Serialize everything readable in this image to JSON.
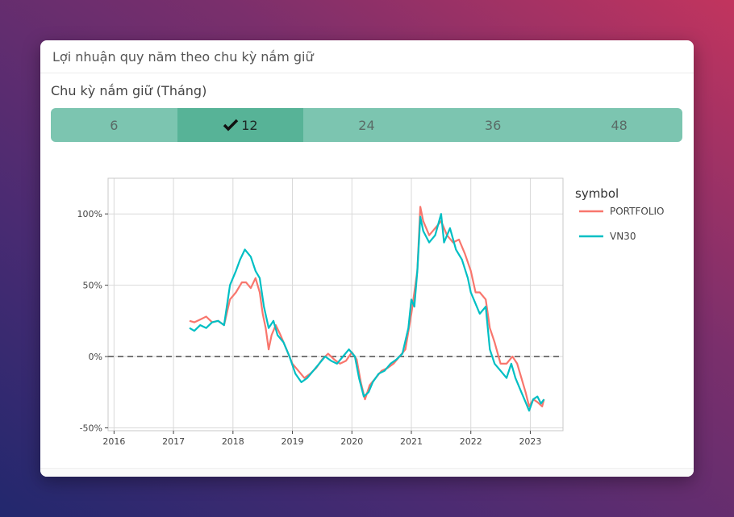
{
  "card": {
    "title": "Lợi nhuận quy năm theo chu kỳ nắm giữ"
  },
  "period": {
    "label": "Chu kỳ nắm giữ (Tháng)",
    "options": [
      "6",
      "12",
      "24",
      "36",
      "48"
    ],
    "selected": "12"
  },
  "colors": {
    "portfolio": "#f8766d",
    "vn30": "#00bfc4",
    "active_button": "#57b397",
    "button": "#7cc5b0"
  },
  "chart_data": {
    "type": "line",
    "y_tick_labels": [
      "100%",
      "50%",
      "0%",
      "-50%"
    ],
    "y_ticks": [
      100,
      50,
      0,
      -50
    ],
    "x_ticks": [
      2016,
      2017,
      2018,
      2019,
      2020,
      2021,
      2022,
      2023
    ],
    "xlim": [
      2015.9,
      2023.55
    ],
    "ylim": [
      -52,
      125
    ],
    "grid": true,
    "reference_line": {
      "y": 0,
      "style": "dashed"
    },
    "legend": {
      "title": "symbol",
      "position": "right"
    },
    "series": [
      {
        "name": "PORTFOLIO",
        "points": [
          [
            2017.27,
            25
          ],
          [
            2017.35,
            24
          ],
          [
            2017.45,
            26
          ],
          [
            2017.55,
            28
          ],
          [
            2017.65,
            24
          ],
          [
            2017.75,
            25
          ],
          [
            2017.85,
            22
          ],
          [
            2017.95,
            40
          ],
          [
            2018.05,
            45
          ],
          [
            2018.15,
            52
          ],
          [
            2018.22,
            52
          ],
          [
            2018.3,
            48
          ],
          [
            2018.38,
            55
          ],
          [
            2018.45,
            45
          ],
          [
            2018.5,
            30
          ],
          [
            2018.55,
            20
          ],
          [
            2018.6,
            5
          ],
          [
            2018.65,
            15
          ],
          [
            2018.72,
            22
          ],
          [
            2018.8,
            15
          ],
          [
            2018.9,
            5
          ],
          [
            2019.0,
            -5
          ],
          [
            2019.1,
            -10
          ],
          [
            2019.2,
            -15
          ],
          [
            2019.3,
            -12
          ],
          [
            2019.4,
            -8
          ],
          [
            2019.5,
            -2
          ],
          [
            2019.6,
            2
          ],
          [
            2019.7,
            -2
          ],
          [
            2019.8,
            -5
          ],
          [
            2019.9,
            -3
          ],
          [
            2020.0,
            3
          ],
          [
            2020.08,
            -2
          ],
          [
            2020.15,
            -18
          ],
          [
            2020.22,
            -30
          ],
          [
            2020.3,
            -20
          ],
          [
            2020.4,
            -15
          ],
          [
            2020.5,
            -10
          ],
          [
            2020.6,
            -8
          ],
          [
            2020.7,
            -5
          ],
          [
            2020.8,
            0
          ],
          [
            2020.9,
            5
          ],
          [
            2021.0,
            30
          ],
          [
            2021.05,
            45
          ],
          [
            2021.1,
            60
          ],
          [
            2021.15,
            105
          ],
          [
            2021.2,
            95
          ],
          [
            2021.3,
            85
          ],
          [
            2021.4,
            90
          ],
          [
            2021.5,
            95
          ],
          [
            2021.6,
            85
          ],
          [
            2021.7,
            80
          ],
          [
            2021.8,
            82
          ],
          [
            2021.9,
            72
          ],
          [
            2022.0,
            60
          ],
          [
            2022.08,
            45
          ],
          [
            2022.15,
            45
          ],
          [
            2022.25,
            40
          ],
          [
            2022.32,
            20
          ],
          [
            2022.4,
            10
          ],
          [
            2022.5,
            -5
          ],
          [
            2022.6,
            -5
          ],
          [
            2022.7,
            0
          ],
          [
            2022.78,
            -5
          ],
          [
            2022.85,
            -15
          ],
          [
            2022.92,
            -25
          ],
          [
            2022.98,
            -35
          ],
          [
            2023.05,
            -30
          ],
          [
            2023.12,
            -32
          ],
          [
            2023.2,
            -35
          ],
          [
            2023.23,
            -30
          ]
        ]
      },
      {
        "name": "VN30",
        "points": [
          [
            2017.27,
            20
          ],
          [
            2017.35,
            18
          ],
          [
            2017.45,
            22
          ],
          [
            2017.55,
            20
          ],
          [
            2017.65,
            24
          ],
          [
            2017.75,
            25
          ],
          [
            2017.85,
            22
          ],
          [
            2017.95,
            50
          ],
          [
            2018.05,
            60
          ],
          [
            2018.12,
            68
          ],
          [
            2018.2,
            75
          ],
          [
            2018.3,
            70
          ],
          [
            2018.38,
            60
          ],
          [
            2018.45,
            55
          ],
          [
            2018.52,
            35
          ],
          [
            2018.6,
            20
          ],
          [
            2018.68,
            25
          ],
          [
            2018.75,
            15
          ],
          [
            2018.85,
            10
          ],
          [
            2018.95,
            0
          ],
          [
            2019.05,
            -12
          ],
          [
            2019.15,
            -18
          ],
          [
            2019.25,
            -15
          ],
          [
            2019.35,
            -10
          ],
          [
            2019.45,
            -5
          ],
          [
            2019.55,
            0
          ],
          [
            2019.65,
            -3
          ],
          [
            2019.75,
            -5
          ],
          [
            2019.85,
            0
          ],
          [
            2019.95,
            5
          ],
          [
            2020.05,
            0
          ],
          [
            2020.12,
            -15
          ],
          [
            2020.2,
            -28
          ],
          [
            2020.28,
            -25
          ],
          [
            2020.35,
            -18
          ],
          [
            2020.45,
            -12
          ],
          [
            2020.55,
            -10
          ],
          [
            2020.65,
            -5
          ],
          [
            2020.75,
            -2
          ],
          [
            2020.85,
            2
          ],
          [
            2020.95,
            20
          ],
          [
            2021.0,
            40
          ],
          [
            2021.05,
            35
          ],
          [
            2021.1,
            60
          ],
          [
            2021.15,
            98
          ],
          [
            2021.2,
            88
          ],
          [
            2021.3,
            80
          ],
          [
            2021.4,
            85
          ],
          [
            2021.5,
            100
          ],
          [
            2021.55,
            80
          ],
          [
            2021.65,
            90
          ],
          [
            2021.75,
            75
          ],
          [
            2021.85,
            68
          ],
          [
            2021.95,
            55
          ],
          [
            2022.0,
            45
          ],
          [
            2022.05,
            40
          ],
          [
            2022.15,
            30
          ],
          [
            2022.25,
            35
          ],
          [
            2022.32,
            5
          ],
          [
            2022.4,
            -5
          ],
          [
            2022.5,
            -10
          ],
          [
            2022.6,
            -15
          ],
          [
            2022.68,
            -5
          ],
          [
            2022.75,
            -15
          ],
          [
            2022.85,
            -25
          ],
          [
            2022.92,
            -32
          ],
          [
            2022.98,
            -38
          ],
          [
            2023.05,
            -30
          ],
          [
            2023.12,
            -28
          ],
          [
            2023.18,
            -33
          ],
          [
            2023.23,
            -30
          ]
        ]
      }
    ]
  }
}
